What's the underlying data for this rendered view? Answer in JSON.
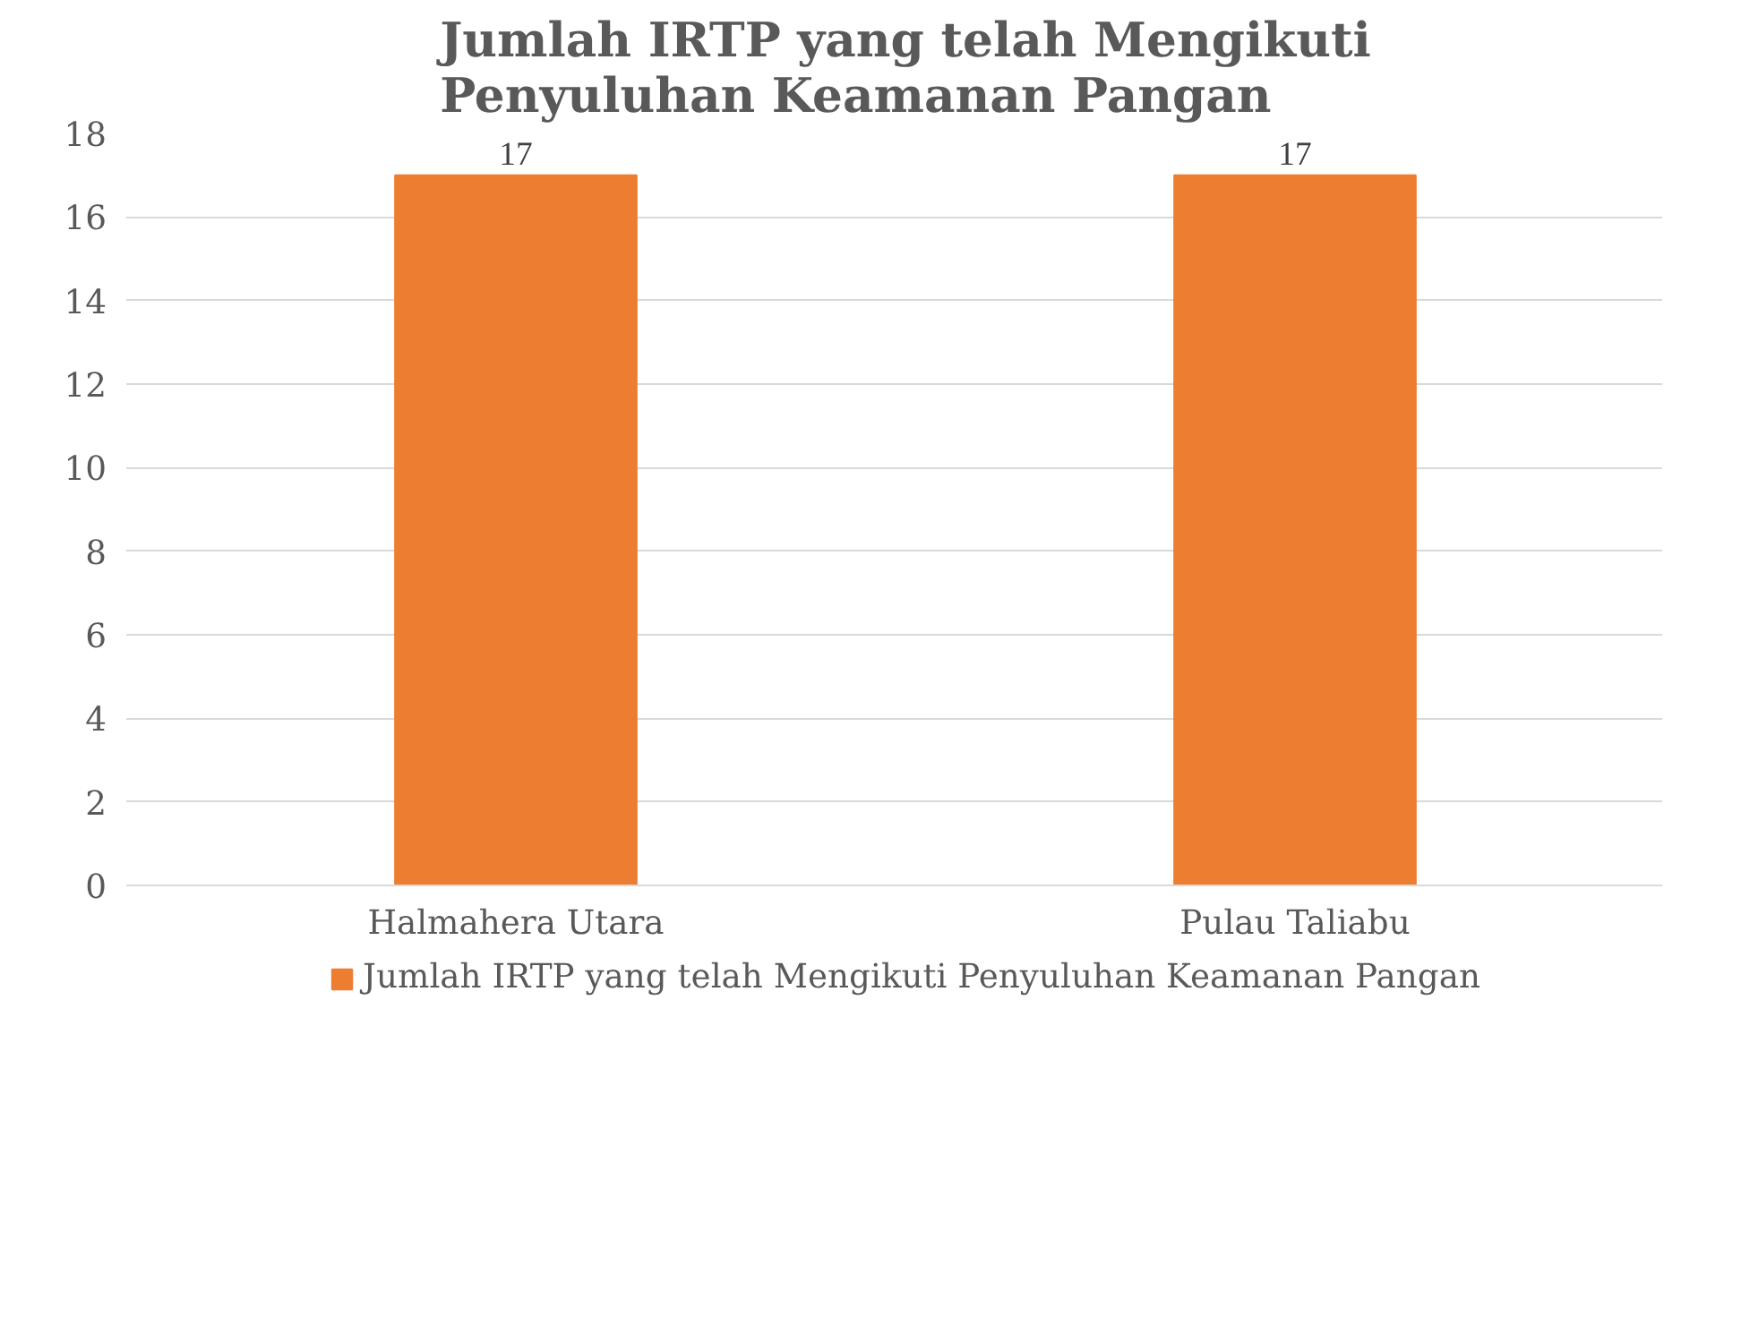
{
  "chart_data": {
    "type": "bar",
    "title": "Jumlah IRTP yang telah Mengikuti Penyuluhan Keamanan Pangan",
    "categories": [
      "Halmahera Utara",
      "Pulau Taliabu"
    ],
    "series": [
      {
        "name": "Jumlah IRTP yang telah Mengikuti Penyuluhan Keamanan Pangan",
        "color": "#ed7d31",
        "values": [
          17,
          17
        ]
      }
    ],
    "ylim": [
      0,
      18
    ],
    "yticks": [
      0,
      2,
      4,
      6,
      8,
      10,
      12,
      14,
      16,
      18
    ],
    "grid": "y",
    "legend": "bottom",
    "data_labels": true
  }
}
